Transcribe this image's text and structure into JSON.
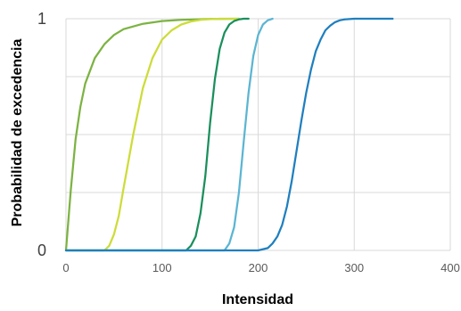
{
  "chart_data": {
    "type": "line",
    "title": "",
    "xlabel": "Intensidad",
    "ylabel": "Probabilidad de excedencia",
    "xlim": [
      0,
      400
    ],
    "ylim": [
      0,
      1
    ],
    "x_ticks": [
      0,
      100,
      200,
      300,
      400
    ],
    "y_ticks": [
      0,
      1
    ],
    "grid": true,
    "legend": "none",
    "series": [
      {
        "color": "#7cb342",
        "x": [
          0,
          5,
          10,
          15,
          20,
          30,
          40,
          50,
          60,
          80,
          100,
          120,
          150,
          180
        ],
        "y": [
          0,
          0.26,
          0.48,
          0.62,
          0.72,
          0.83,
          0.89,
          0.93,
          0.955,
          0.978,
          0.99,
          0.995,
          0.999,
          1
        ]
      },
      {
        "color": "#cddc39",
        "x": [
          0,
          40,
          45,
          50,
          55,
          60,
          70,
          80,
          90,
          100,
          110,
          120,
          130,
          140,
          150,
          160,
          170,
          180
        ],
        "y": [
          0,
          0,
          0.02,
          0.07,
          0.15,
          0.27,
          0.5,
          0.7,
          0.83,
          0.91,
          0.95,
          0.975,
          0.988,
          0.995,
          0.998,
          1,
          1,
          1
        ]
      },
      {
        "color": "#1a8f5c",
        "x": [
          0,
          125,
          130,
          135,
          140,
          145,
          150,
          155,
          160,
          165,
          170,
          175,
          180,
          185,
          190
        ],
        "y": [
          0,
          0,
          0.02,
          0.06,
          0.16,
          0.32,
          0.55,
          0.74,
          0.87,
          0.94,
          0.975,
          0.99,
          0.997,
          1,
          1
        ]
      },
      {
        "color": "#5bb5d2",
        "x": [
          0,
          165,
          170,
          175,
          180,
          185,
          190,
          195,
          200,
          205,
          210,
          215
        ],
        "y": [
          0,
          0,
          0.03,
          0.1,
          0.25,
          0.47,
          0.68,
          0.84,
          0.93,
          0.975,
          0.993,
          1
        ]
      },
      {
        "color": "#1f7fbf",
        "x": [
          0,
          200,
          210,
          215,
          220,
          225,
          230,
          235,
          240,
          245,
          250,
          255,
          260,
          265,
          270,
          275,
          280,
          285,
          290,
          300,
          310,
          320,
          340
        ],
        "y": [
          0,
          0,
          0.01,
          0.03,
          0.06,
          0.11,
          0.19,
          0.3,
          0.43,
          0.56,
          0.68,
          0.78,
          0.86,
          0.91,
          0.95,
          0.97,
          0.985,
          0.993,
          0.997,
          1,
          1,
          1,
          1
        ]
      }
    ]
  }
}
